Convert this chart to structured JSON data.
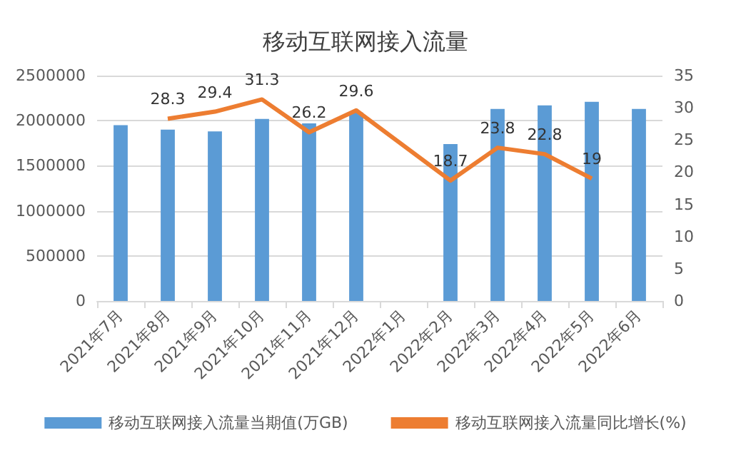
{
  "chart_data": {
    "type": "bar",
    "title": "移动互联网接入流量",
    "categories": [
      "2021年7月",
      "2021年8月",
      "2021年9月",
      "2021年10月",
      "2021年11月",
      "2021年12月",
      "2022年1月",
      "2022年2月",
      "2022年3月",
      "2022年4月",
      "2022年5月",
      "2022年6月"
    ],
    "series": [
      {
        "name": "移动互联网接入流量当期值(万GB)",
        "color": "#5b9bd5",
        "values": [
          1950000,
          1900000,
          1880000,
          2020000,
          1970000,
          2090000,
          null,
          1740000,
          2130000,
          2170000,
          2210000,
          2130000
        ]
      },
      {
        "name": "移动互联网接入流量同比增长(%)",
        "type": "line",
        "axis": "y2",
        "color": "#ed7d31",
        "data_labels": true,
        "values": [
          null,
          28.3,
          29.4,
          31.3,
          26.2,
          29.6,
          null,
          18.7,
          23.8,
          22.8,
          19,
          null
        ]
      }
    ],
    "ylim": [
      0,
      2500000
    ],
    "yticks": [
      0,
      500000,
      1000000,
      1500000,
      2000000,
      2500000
    ],
    "y2lim": [
      0,
      35
    ],
    "y2ticks": [
      0,
      5,
      10,
      15,
      20,
      25,
      30,
      35
    ],
    "grid": "y",
    "legend": "bottom",
    "marker": "none"
  }
}
